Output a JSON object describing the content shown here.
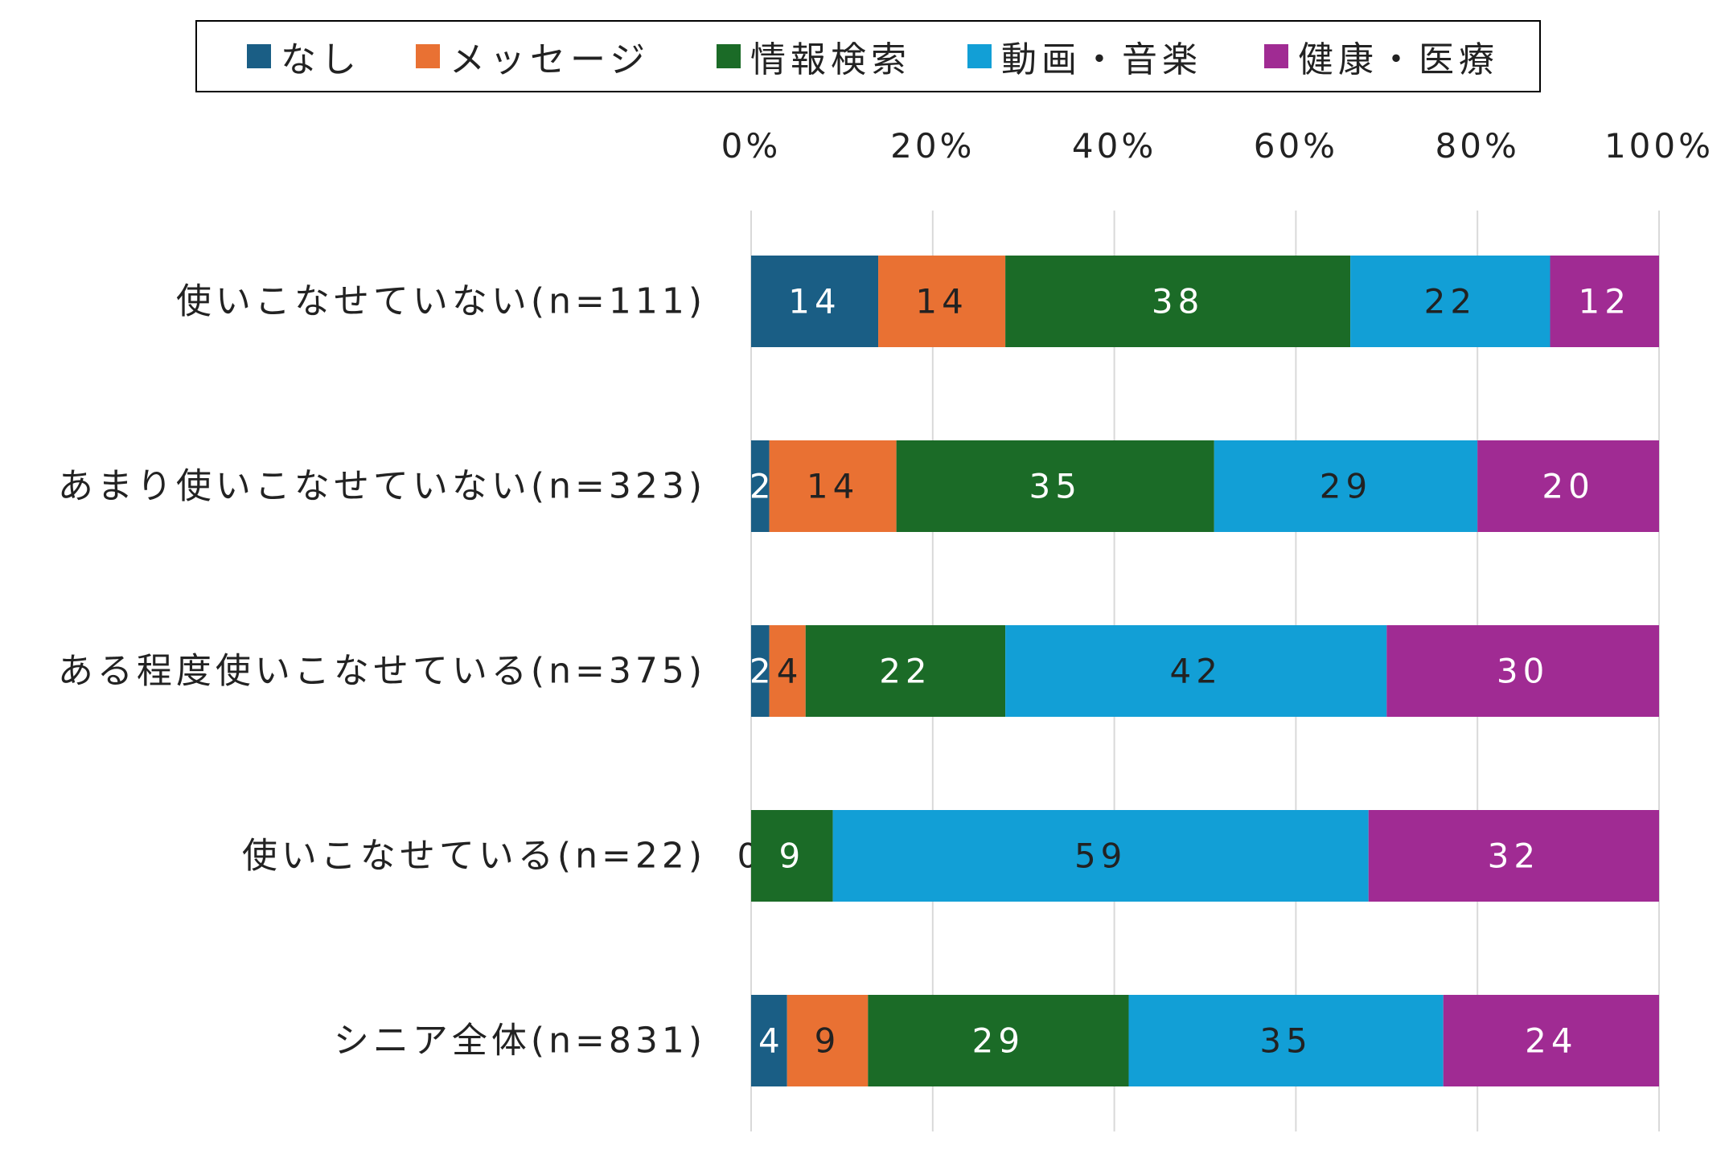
{
  "colors": {
    "なし": "#1a5e85",
    "メッセージ": "#e97133",
    "情報検索": "#1b6b27",
    "動画・音楽": "#129fd6",
    "健康・医療": "#a02b93",
    "grid": "#d9d9d9",
    "text": "#222222"
  },
  "chart_data": {
    "type": "bar",
    "orientation": "horizontal",
    "stacked": "percent",
    "categories": [
      "使いこなせていない(n=111)",
      "あまり使いこなせていない(n=323)",
      "ある程度使いこなせている(n=375)",
      "使いこなせている(n=22)",
      "シニア全体(n=831)"
    ],
    "series": [
      {
        "name": "なし",
        "values": [
          14,
          2,
          2,
          0,
          4
        ]
      },
      {
        "name": "メッセージ",
        "values": [
          14,
          14,
          4,
          0,
          9
        ]
      },
      {
        "name": "情報検索",
        "values": [
          38,
          35,
          22,
          9,
          29
        ]
      },
      {
        "name": "動画・音楽",
        "values": [
          22,
          29,
          42,
          59,
          35
        ]
      },
      {
        "name": "健康・医療",
        "values": [
          12,
          20,
          30,
          32,
          24
        ]
      }
    ],
    "xlim": [
      0,
      100
    ],
    "x_ticks": [
      "0%",
      "20%",
      "40%",
      "60%",
      "80%",
      "100%"
    ],
    "x_axis_position": "top",
    "legend_position": "top",
    "grid": true
  }
}
